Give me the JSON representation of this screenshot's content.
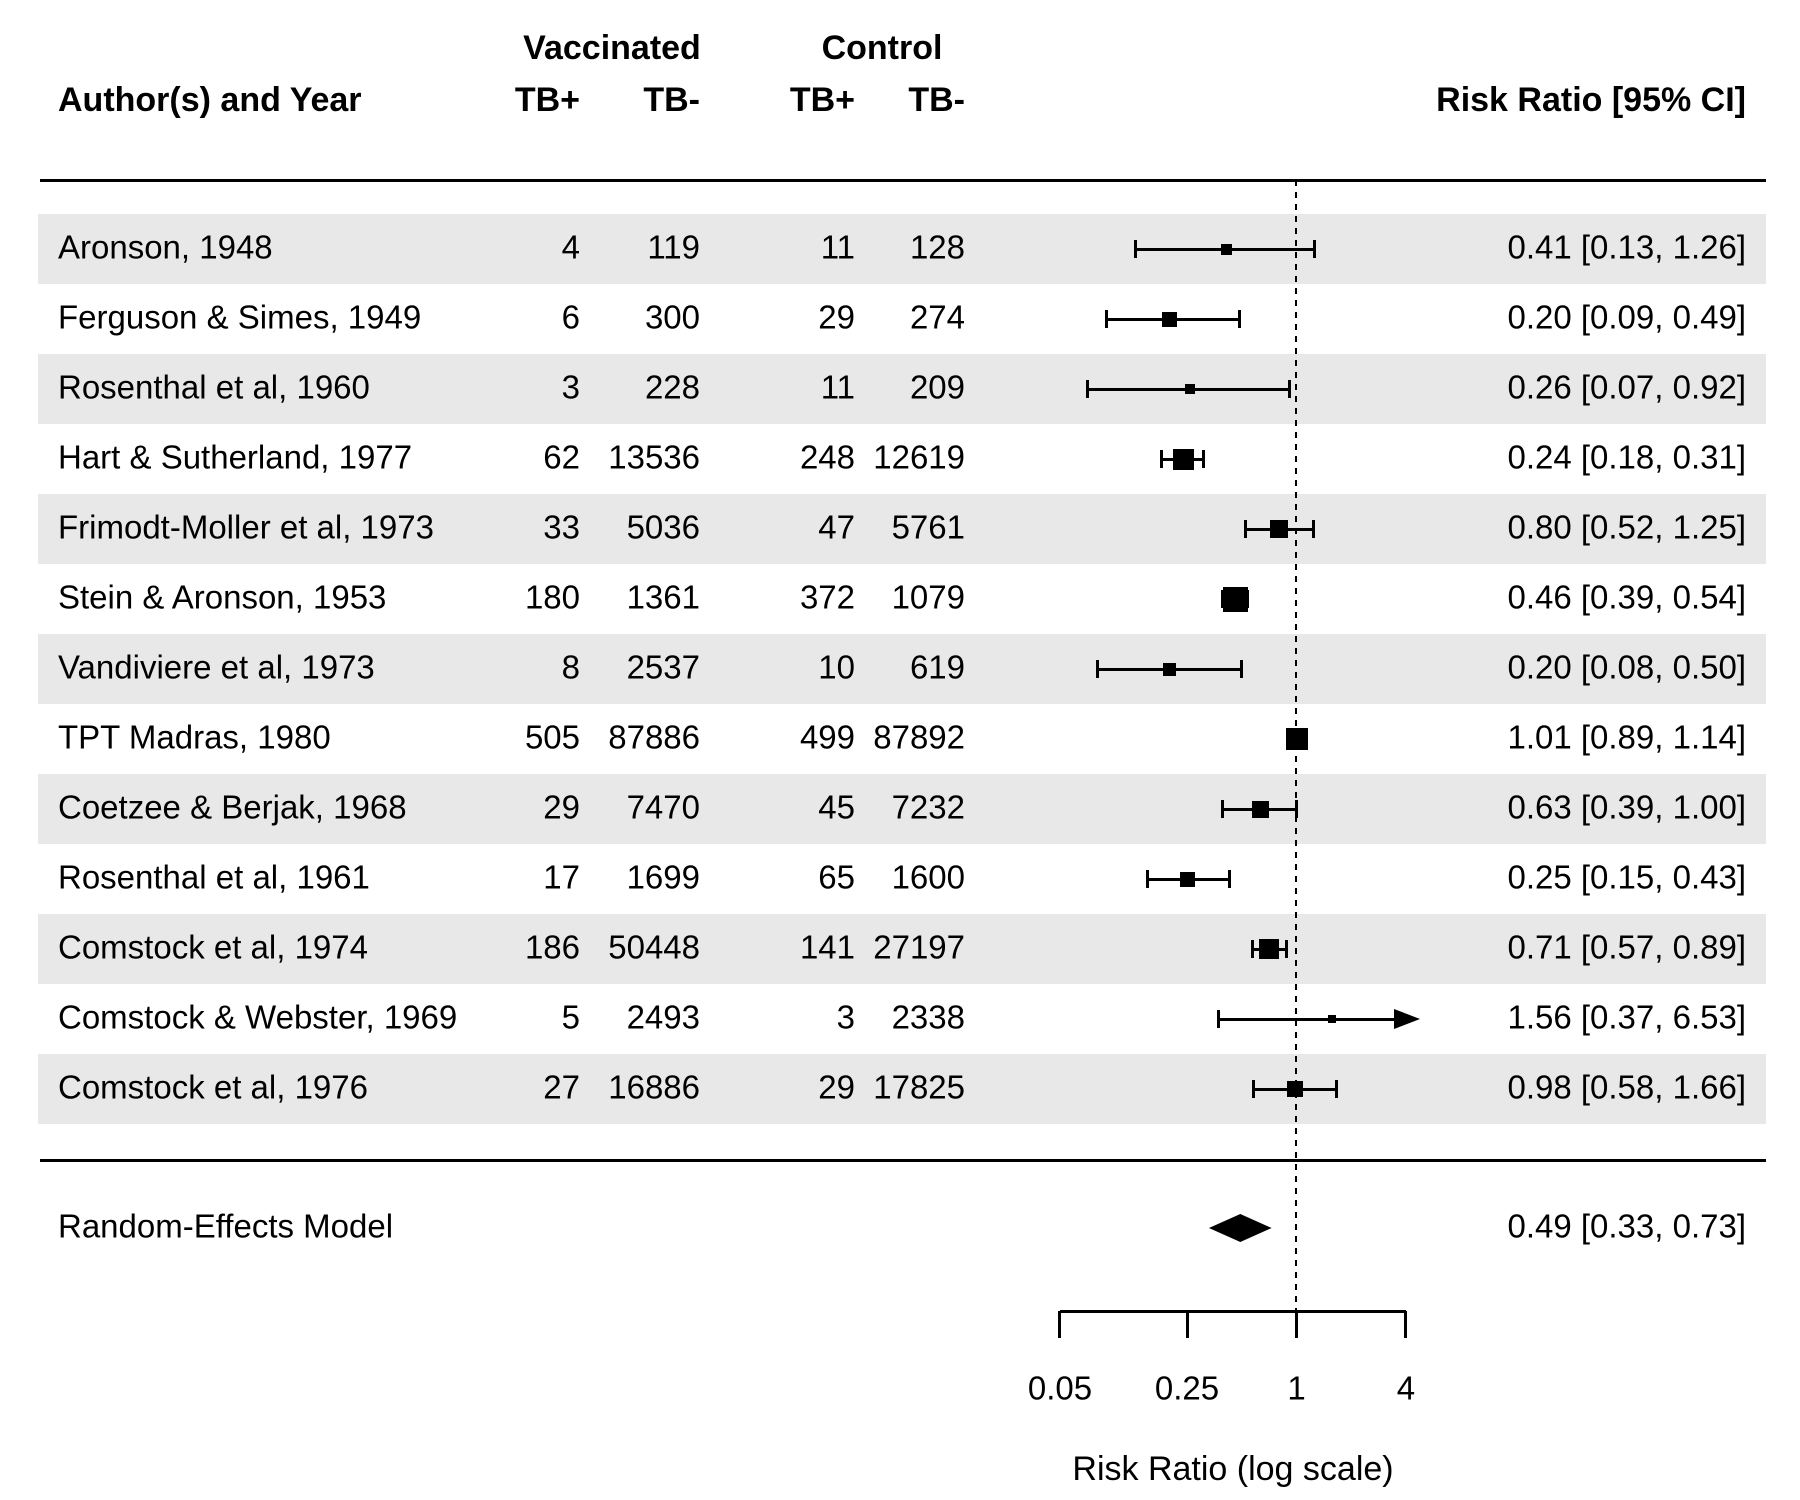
{
  "header": {
    "group1": "Vaccinated",
    "group2": "Control",
    "author_col": "Author(s) and Year",
    "sub_cols": [
      "TB+",
      "TB-",
      "TB+",
      "TB-"
    ],
    "effect_col": "Risk Ratio [95% CI]"
  },
  "studies": [
    {
      "author": "Aronson, 1948",
      "tbpos_v": "4",
      "tbneg_v": "119",
      "tbpos_c": "11",
      "tbneg_c": "128",
      "rr": 0.41,
      "lo": 0.13,
      "hi": 1.26,
      "ci_label": "0.41 [0.13, 1.26]",
      "marker_size": 11
    },
    {
      "author": "Ferguson & Simes, 1949",
      "tbpos_v": "6",
      "tbneg_v": "300",
      "tbpos_c": "29",
      "tbneg_c": "274",
      "rr": 0.2,
      "lo": 0.09,
      "hi": 0.49,
      "ci_label": "0.20 [0.09, 0.49]",
      "marker_size": 15
    },
    {
      "author": "Rosenthal et al, 1960",
      "tbpos_v": "3",
      "tbneg_v": "228",
      "tbpos_c": "11",
      "tbneg_c": "209",
      "rr": 0.26,
      "lo": 0.07,
      "hi": 0.92,
      "ci_label": "0.26 [0.07, 0.92]",
      "marker_size": 10
    },
    {
      "author": "Hart & Sutherland, 1977",
      "tbpos_v": "62",
      "tbneg_v": "13536",
      "tbpos_c": "248",
      "tbneg_c": "12619",
      "rr": 0.24,
      "lo": 0.18,
      "hi": 0.31,
      "ci_label": "0.24 [0.18, 0.31]",
      "marker_size": 21
    },
    {
      "author": "Frimodt-Moller et al, 1973",
      "tbpos_v": "33",
      "tbneg_v": "5036",
      "tbpos_c": "47",
      "tbneg_c": "5761",
      "rr": 0.8,
      "lo": 0.52,
      "hi": 1.25,
      "ci_label": "0.80 [0.52, 1.25]",
      "marker_size": 18
    },
    {
      "author": "Stein & Aronson, 1953",
      "tbpos_v": "180",
      "tbneg_v": "1361",
      "tbpos_c": "372",
      "tbneg_c": "1079",
      "rr": 0.46,
      "lo": 0.39,
      "hi": 0.54,
      "ci_label": "0.46 [0.39, 0.54]",
      "marker_size": 25
    },
    {
      "author": "Vandiviere et al, 1973",
      "tbpos_v": "8",
      "tbneg_v": "2537",
      "tbpos_c": "10",
      "tbneg_c": "619",
      "rr": 0.2,
      "lo": 0.08,
      "hi": 0.5,
      "ci_label": "0.20 [0.08, 0.50]",
      "marker_size": 13
    },
    {
      "author": "TPT Madras, 1980",
      "tbpos_v": "505",
      "tbneg_v": "87886",
      "tbpos_c": "499",
      "tbneg_c": "87892",
      "rr": 1.01,
      "lo": 0.89,
      "hi": 1.14,
      "ci_label": "1.01 [0.89, 1.14]",
      "marker_size": 22
    },
    {
      "author": "Coetzee & Berjak, 1968",
      "tbpos_v": "29",
      "tbneg_v": "7470",
      "tbpos_c": "45",
      "tbneg_c": "7232",
      "rr": 0.63,
      "lo": 0.39,
      "hi": 1.0,
      "ci_label": "0.63 [0.39, 1.00]",
      "marker_size": 17
    },
    {
      "author": "Rosenthal et al, 1961",
      "tbpos_v": "17",
      "tbneg_v": "1699",
      "tbpos_c": "65",
      "tbneg_c": "1600",
      "rr": 0.25,
      "lo": 0.15,
      "hi": 0.43,
      "ci_label": "0.25 [0.15, 0.43]",
      "marker_size": 15
    },
    {
      "author": "Comstock et al, 1974",
      "tbpos_v": "186",
      "tbneg_v": "50448",
      "tbpos_c": "141",
      "tbneg_c": "27197",
      "rr": 0.71,
      "lo": 0.57,
      "hi": 0.89,
      "ci_label": "0.71 [0.57, 0.89]",
      "marker_size": 20
    },
    {
      "author": "Comstock & Webster, 1969",
      "tbpos_v": "5",
      "tbneg_v": "2493",
      "tbpos_c": "3",
      "tbneg_c": "2338",
      "rr": 1.56,
      "lo": 0.37,
      "hi": 6.53,
      "ci_label": "1.56 [0.37, 6.53]",
      "marker_size": 8
    },
    {
      "author": "Comstock et al, 1976",
      "tbpos_v": "27",
      "tbneg_v": "16886",
      "tbpos_c": "29",
      "tbneg_c": "17825",
      "rr": 0.98,
      "lo": 0.58,
      "hi": 1.66,
      "ci_label": "0.98 [0.58, 1.66]",
      "marker_size": 16
    }
  ],
  "summary": {
    "label": "Random-Effects Model",
    "rr": 0.49,
    "lo": 0.33,
    "hi": 0.73,
    "ci_label": "0.49 [0.33, 0.73]"
  },
  "axis": {
    "min": 0.05,
    "max": 4,
    "ref_line": 1,
    "ticks": [
      0.05,
      0.25,
      1,
      4
    ],
    "tick_labels": [
      "0.05",
      "0.25",
      "1",
      "4"
    ],
    "label": "Risk Ratio (log scale)"
  },
  "colors": {
    "stripe": "#e8e8e8",
    "ink": "#000000",
    "background": "#ffffff"
  },
  "chart_data": {
    "type": "scatter",
    "variant": "forest-plot-log-scale",
    "title": "",
    "xlabel": "Risk Ratio (log scale)",
    "x_axis_ticks": [
      0.05,
      0.25,
      1,
      4
    ],
    "x_range": [
      0.05,
      4
    ],
    "reference_line": 1,
    "legend_position": "none",
    "grid": false,
    "studies": [
      {
        "label": "Aronson, 1948",
        "vaccinated_tb_pos": 4,
        "vaccinated_tb_neg": 119,
        "control_tb_pos": 11,
        "control_tb_neg": 128,
        "risk_ratio": 0.41,
        "ci_lower": 0.13,
        "ci_upper": 1.26
      },
      {
        "label": "Ferguson & Simes, 1949",
        "vaccinated_tb_pos": 6,
        "vaccinated_tb_neg": 300,
        "control_tb_pos": 29,
        "control_tb_neg": 274,
        "risk_ratio": 0.2,
        "ci_lower": 0.09,
        "ci_upper": 0.49
      },
      {
        "label": "Rosenthal et al, 1960",
        "vaccinated_tb_pos": 3,
        "vaccinated_tb_neg": 228,
        "control_tb_pos": 11,
        "control_tb_neg": 209,
        "risk_ratio": 0.26,
        "ci_lower": 0.07,
        "ci_upper": 0.92
      },
      {
        "label": "Hart & Sutherland, 1977",
        "vaccinated_tb_pos": 62,
        "vaccinated_tb_neg": 13536,
        "control_tb_pos": 248,
        "control_tb_neg": 12619,
        "risk_ratio": 0.24,
        "ci_lower": 0.18,
        "ci_upper": 0.31
      },
      {
        "label": "Frimodt-Moller et al, 1973",
        "vaccinated_tb_pos": 33,
        "vaccinated_tb_neg": 5036,
        "control_tb_pos": 47,
        "control_tb_neg": 5761,
        "risk_ratio": 0.8,
        "ci_lower": 0.52,
        "ci_upper": 1.25
      },
      {
        "label": "Stein & Aronson, 1953",
        "vaccinated_tb_pos": 180,
        "vaccinated_tb_neg": 1361,
        "control_tb_pos": 372,
        "control_tb_neg": 1079,
        "risk_ratio": 0.46,
        "ci_lower": 0.39,
        "ci_upper": 0.54
      },
      {
        "label": "Vandiviere et al, 1973",
        "vaccinated_tb_pos": 8,
        "vaccinated_tb_neg": 2537,
        "control_tb_pos": 10,
        "control_tb_neg": 619,
        "risk_ratio": 0.2,
        "ci_lower": 0.08,
        "ci_upper": 0.5
      },
      {
        "label": "TPT Madras, 1980",
        "vaccinated_tb_pos": 505,
        "vaccinated_tb_neg": 87886,
        "control_tb_pos": 499,
        "control_tb_neg": 87892,
        "risk_ratio": 1.01,
        "ci_lower": 0.89,
        "ci_upper": 1.14
      },
      {
        "label": "Coetzee & Berjak, 1968",
        "vaccinated_tb_pos": 29,
        "vaccinated_tb_neg": 7470,
        "control_tb_pos": 45,
        "control_tb_neg": 7232,
        "risk_ratio": 0.63,
        "ci_lower": 0.39,
        "ci_upper": 1.0
      },
      {
        "label": "Rosenthal et al, 1961",
        "vaccinated_tb_pos": 17,
        "vaccinated_tb_neg": 1699,
        "control_tb_pos": 65,
        "control_tb_neg": 1600,
        "risk_ratio": 0.25,
        "ci_lower": 0.15,
        "ci_upper": 0.43
      },
      {
        "label": "Comstock et al, 1974",
        "vaccinated_tb_pos": 186,
        "vaccinated_tb_neg": 50448,
        "control_tb_pos": 141,
        "control_tb_neg": 27197,
        "risk_ratio": 0.71,
        "ci_lower": 0.57,
        "ci_upper": 0.89
      },
      {
        "label": "Comstock & Webster, 1969",
        "vaccinated_tb_pos": 5,
        "vaccinated_tb_neg": 2493,
        "control_tb_pos": 3,
        "control_tb_neg": 2338,
        "risk_ratio": 1.56,
        "ci_lower": 0.37,
        "ci_upper": 6.53
      },
      {
        "label": "Comstock et al, 1976",
        "vaccinated_tb_pos": 27,
        "vaccinated_tb_neg": 16886,
        "control_tb_pos": 29,
        "control_tb_neg": 17825,
        "risk_ratio": 0.98,
        "ci_lower": 0.58,
        "ci_upper": 1.66
      }
    ],
    "summary": {
      "label": "Random-Effects Model",
      "risk_ratio": 0.49,
      "ci_lower": 0.33,
      "ci_upper": 0.73
    }
  }
}
